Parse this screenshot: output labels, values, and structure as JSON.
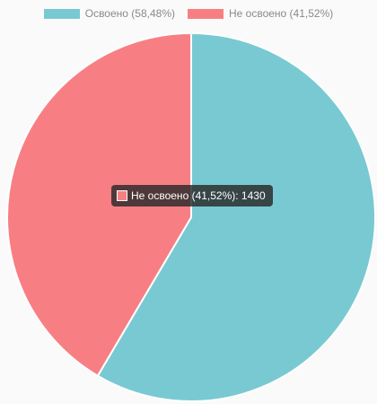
{
  "chart_data": {
    "type": "pie",
    "categories": [
      "Освоено (58,48%)",
      "Не освоено (41,52%)"
    ],
    "values": [
      58.48,
      41.52
    ],
    "colors": [
      "#79c9d3",
      "#f77f84"
    ],
    "legend_position": "top",
    "title": ""
  },
  "tooltip": {
    "label": "Не освоено (41,52%)",
    "value": "1430",
    "text": "Не освоено (41,52%): 1430",
    "color": "#f77f84"
  }
}
